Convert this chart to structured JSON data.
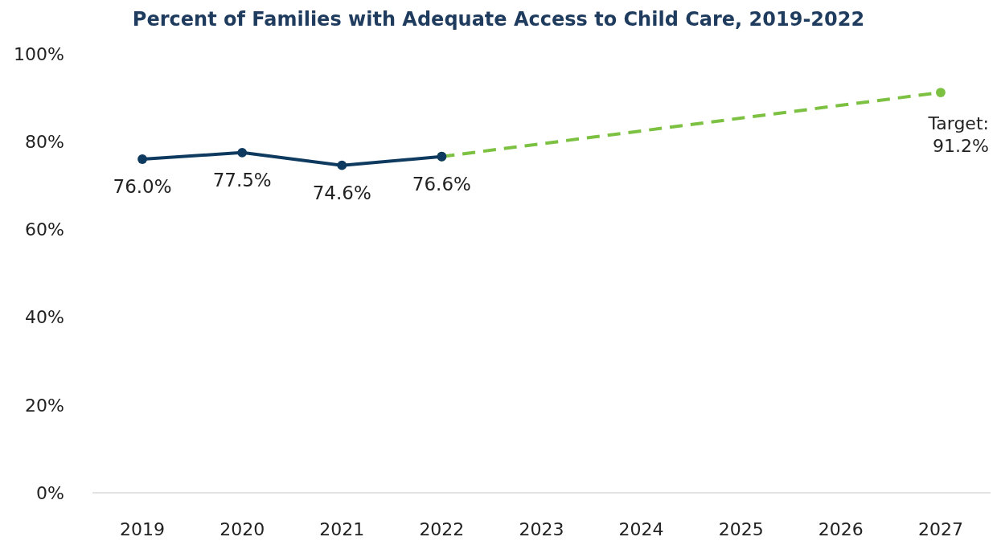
{
  "chart_data": {
    "type": "line",
    "title": "Percent of Families with Adequate Access to Child Care, 2019-2022",
    "categories": [
      "2019",
      "2020",
      "2021",
      "2022",
      "2023",
      "2024",
      "2025",
      "2026",
      "2027"
    ],
    "series": [
      {
        "color": "#0e3a5f",
        "values": [
          76.0,
          77.5,
          74.6,
          76.6,
          null,
          null,
          null,
          null,
          null
        ],
        "value_labels": [
          "76.0%",
          "77.5%",
          "74.6%",
          "76.6%",
          null,
          null,
          null,
          null,
          null
        ],
        "line_style": "solid",
        "marker": "circle"
      },
      {
        "color": "#7dc142",
        "values": [
          null,
          null,
          null,
          76.6,
          null,
          null,
          null,
          null,
          91.2
        ],
        "line_style": "dashed",
        "marker": "circle"
      }
    ],
    "annotations": [
      {
        "text": "Target:\n91.2%",
        "x": "2027",
        "y": 91.2
      }
    ],
    "ylim": [
      0,
      100
    ],
    "yticks": [
      {
        "value": 0,
        "label": "0%"
      },
      {
        "value": 20,
        "label": "20%"
      },
      {
        "value": 40,
        "label": "40%"
      },
      {
        "value": 60,
        "label": "60%"
      },
      {
        "value": 80,
        "label": "80%"
      },
      {
        "value": 100,
        "label": "100%"
      }
    ],
    "grid": false
  }
}
